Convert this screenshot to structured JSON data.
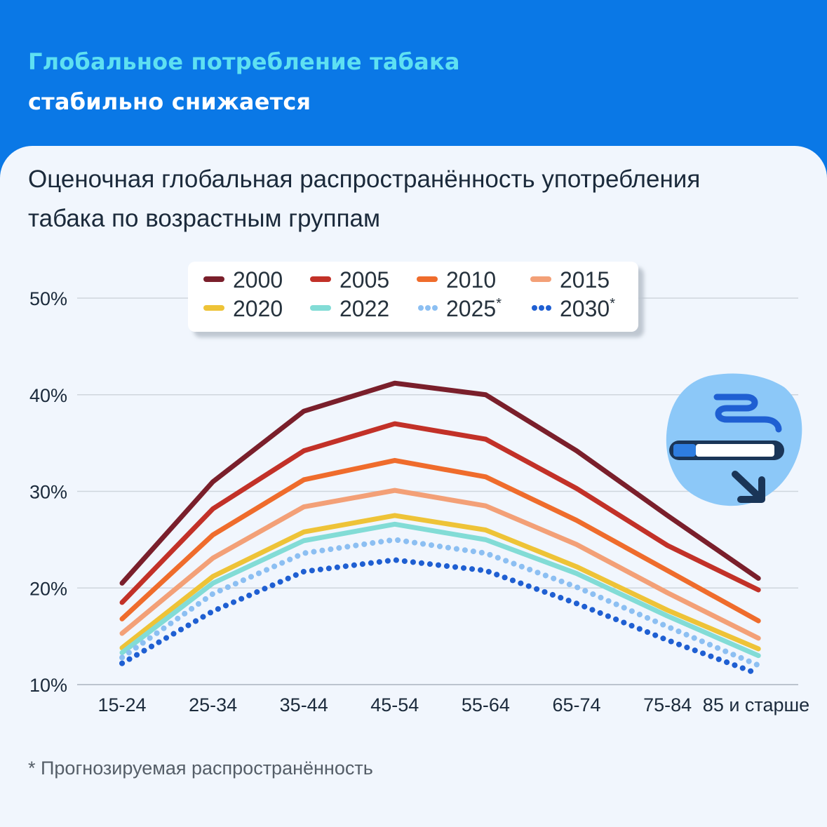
{
  "header": {
    "line1": "Глобальное потребление табака",
    "line2": "стабильно снижается"
  },
  "subtitle": {
    "line1": "Оценочная глобальная распространённость употребления",
    "line2": "табака по возрастным группам"
  },
  "footnote": "* Прогнозируемая распространённость",
  "colors": {
    "header_bg": "#0a78e6",
    "title_accent": "#5ee0f2",
    "card_bg": "#f1f6fd"
  },
  "icon": "cigarette-declining-icon",
  "chart_data": {
    "type": "line",
    "categories": [
      "15-24",
      "25-34",
      "35-44",
      "45-54",
      "55-64",
      "65-74",
      "75-84",
      "85 и старше"
    ],
    "ylim": [
      10,
      50
    ],
    "yticks": [
      10,
      20,
      30,
      40,
      50
    ],
    "ytick_labels": [
      "10%",
      "20%",
      "30%",
      "40%",
      "50%"
    ],
    "grid": true,
    "legend_position": "top-center",
    "series": [
      {
        "name": "2000",
        "color": "#7a1f2b",
        "dotted": false,
        "values": [
          20.5,
          31.0,
          38.3,
          41.2,
          40.0,
          34.2,
          27.5,
          21.0
        ]
      },
      {
        "name": "2005",
        "color": "#c23128",
        "dotted": false,
        "values": [
          18.5,
          28.2,
          34.2,
          37.0,
          35.4,
          30.3,
          24.4,
          19.8
        ]
      },
      {
        "name": "2010",
        "color": "#ef6c2c",
        "dotted": false,
        "values": [
          16.8,
          25.5,
          31.2,
          33.2,
          31.5,
          27.0,
          21.8,
          16.6
        ]
      },
      {
        "name": "2015",
        "color": "#f3a077",
        "dotted": false,
        "values": [
          15.3,
          23.1,
          28.4,
          30.1,
          28.5,
          24.5,
          19.5,
          14.8
        ]
      },
      {
        "name": "2020",
        "color": "#eec337",
        "dotted": false,
        "values": [
          13.8,
          21.2,
          25.8,
          27.5,
          26.0,
          22.2,
          17.7,
          13.7
        ]
      },
      {
        "name": "2022",
        "color": "#82dcd6",
        "dotted": false,
        "values": [
          13.3,
          20.5,
          24.9,
          26.6,
          25.0,
          21.5,
          17.1,
          13.0
        ]
      },
      {
        "name": "2025*",
        "color": "#8cbff2",
        "dotted": true,
        "values": [
          12.8,
          19.4,
          23.6,
          25.0,
          23.6,
          20.1,
          16.0,
          12.0
        ]
      },
      {
        "name": "2030*",
        "color": "#1f5fd2",
        "dotted": true,
        "values": [
          12.2,
          17.6,
          21.7,
          22.9,
          21.8,
          18.4,
          14.6,
          11.1
        ]
      }
    ]
  }
}
